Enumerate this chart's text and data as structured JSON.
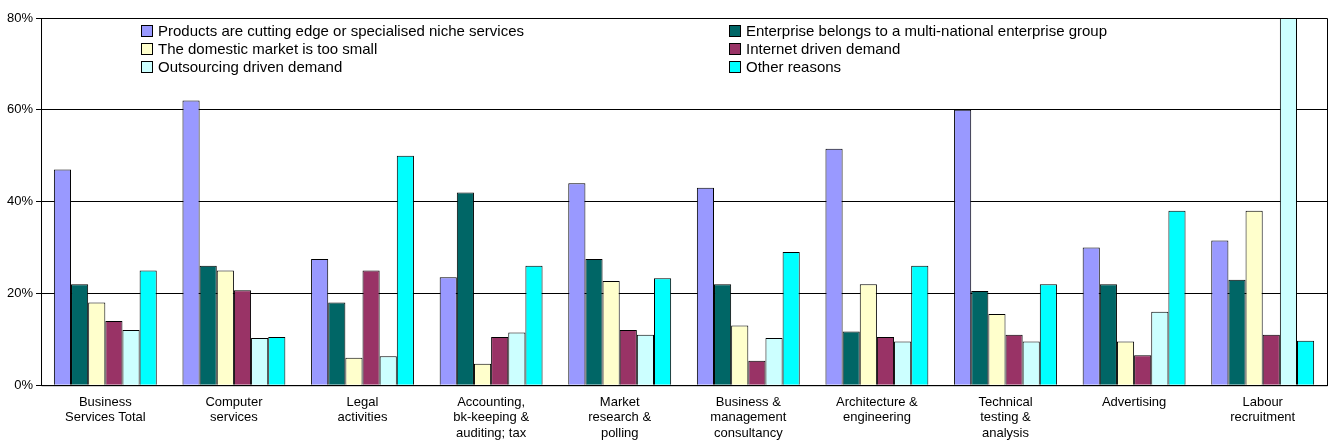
{
  "chart_data": {
    "type": "bar",
    "categories": [
      "Business Services Total",
      "Computer services",
      "Legal activities",
      "Accounting, bk-keeping & auditing; tax",
      "Market research & polling",
      "Business & management consultancy",
      "Architecture & engineering",
      "Technical testing & analysis",
      "Advertising",
      "Labour recruitment"
    ],
    "series": [
      {
        "name": "Products are cutting edge or specialised niche services",
        "color": "#9999ff",
        "values": [
          47,
          62,
          27.5,
          23.5,
          44,
          43,
          51.5,
          60,
          30,
          31.5
        ]
      },
      {
        "name": "Enterprise belongs to a multi-national enterprise group",
        "color": "#006666",
        "values": [
          22,
          26,
          18,
          42,
          27.5,
          22,
          11.7,
          20.5,
          22,
          23
        ]
      },
      {
        "name": "The domestic market is too small",
        "color": "#ffffcc",
        "values": [
          18,
          25,
          6,
          4.7,
          22.7,
          13,
          22,
          15.5,
          9.5,
          38
        ]
      },
      {
        "name": "Internet driven demand",
        "color": "#993366",
        "values": [
          14,
          20.7,
          25,
          10.5,
          12,
          5.3,
          10.5,
          11,
          6.5,
          11
        ]
      },
      {
        "name": "Outsourcing driven demand",
        "color": "#ccffff",
        "values": [
          12,
          10.3,
          6.3,
          11.5,
          11,
          10.3,
          9.5,
          9.5,
          16,
          80
        ]
      },
      {
        "name": "Other reasons",
        "color": "#00ffff",
        "values": [
          25,
          10.5,
          50,
          26,
          23.3,
          29,
          26,
          22,
          38,
          9.7
        ]
      }
    ],
    "ylim": [
      0,
      80
    ],
    "yticks": [
      {
        "value": 0,
        "label": "0%"
      },
      {
        "value": 20,
        "label": "20%"
      },
      {
        "value": 40,
        "label": "40%"
      },
      {
        "value": 60,
        "label": "60%"
      },
      {
        "value": 80,
        "label": "80%"
      }
    ],
    "grid": "y",
    "legend": "top"
  }
}
